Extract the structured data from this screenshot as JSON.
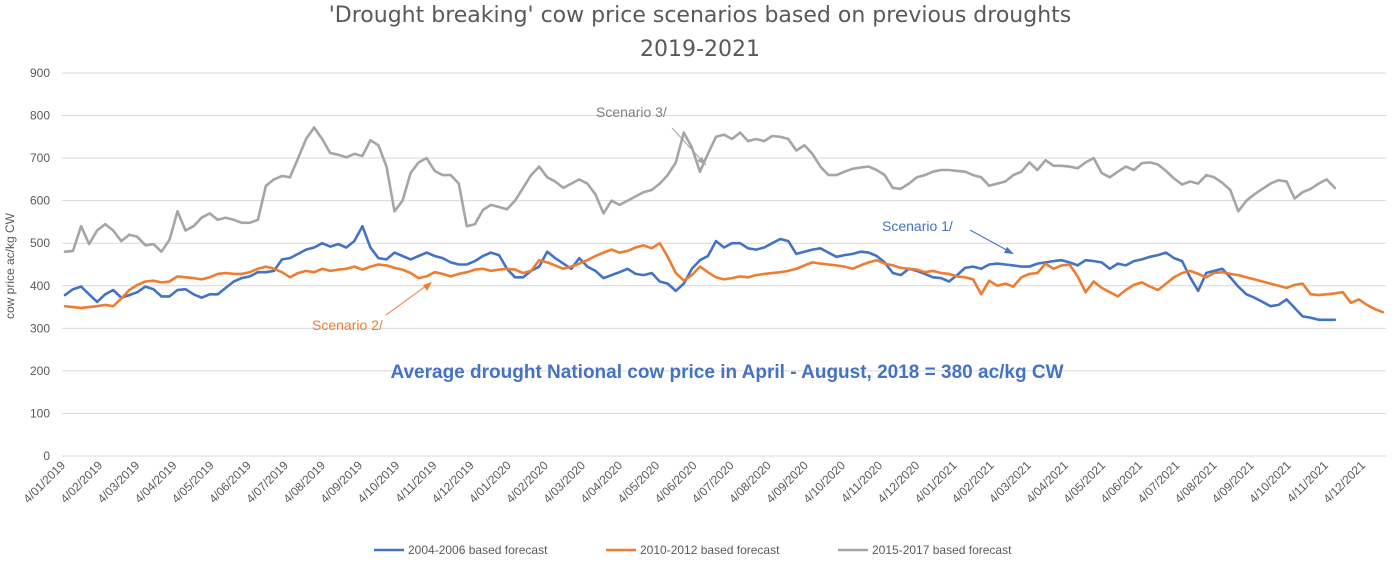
{
  "chart_data": {
    "type": "line",
    "title": "'Drought breaking' cow price scenarios based on previous droughts",
    "subtitle": "2019-2021",
    "ylabel": "cow price ac/kg CW",
    "xlabel": "",
    "ylim": [
      0,
      900
    ],
    "yticks": [
      0,
      100,
      200,
      300,
      400,
      500,
      600,
      700,
      800,
      900
    ],
    "grid": true,
    "legend_position": "bottom",
    "x_tick_labels": [
      "4/01/2019",
      "4/02/2019",
      "4/03/2019",
      "4/04/2019",
      "4/05/2019",
      "4/06/2019",
      "4/07/2019",
      "4/08/2019",
      "4/09/2019",
      "4/10/2019",
      "4/11/2019",
      "4/12/2019",
      "4/01/2020",
      "4/02/2020",
      "4/03/2020",
      "4/04/2020",
      "4/05/2020",
      "4/06/2020",
      "4/07/2020",
      "4/08/2020",
      "4/09/2020",
      "4/10/2020",
      "4/11/2020",
      "4/12/2020",
      "4/01/2021",
      "4/02/2021",
      "4/03/2021",
      "4/04/2021",
      "4/05/2021",
      "4/06/2021",
      "4/07/2021",
      "4/08/2021",
      "4/09/2021",
      "4/10/2021",
      "4/11/2021",
      "4/12/2021"
    ],
    "series": [
      {
        "name": "2004-2006 based forecast",
        "color": "#4472c4",
        "values": [
          378,
          392,
          398,
          380,
          362,
          380,
          390,
          372,
          378,
          385,
          398,
          392,
          375,
          375,
          390,
          392,
          380,
          372,
          380,
          380,
          395,
          410,
          418,
          422,
          432,
          432,
          435,
          462,
          465,
          475,
          485,
          490,
          500,
          492,
          498,
          490,
          505,
          540,
          490,
          465,
          462,
          478,
          470,
          462,
          470,
          478,
          470,
          465,
          455,
          450,
          450,
          458,
          470,
          478,
          472,
          440,
          420,
          420,
          435,
          445,
          480,
          465,
          452,
          440,
          465,
          445,
          435,
          418,
          425,
          432,
          440,
          428,
          425,
          430,
          410,
          405,
          388,
          405,
          440,
          460,
          470,
          505,
          490,
          500,
          500,
          488,
          485,
          490,
          500,
          510,
          505,
          475,
          480,
          485,
          488,
          478,
          468,
          472,
          475,
          480,
          478,
          470,
          455,
          430,
          425,
          440,
          435,
          428,
          420,
          418,
          410,
          425,
          442,
          445,
          440,
          450,
          452,
          450,
          448,
          445,
          445,
          452,
          455,
          458,
          460,
          455,
          448,
          460,
          458,
          455,
          440,
          452,
          448,
          458,
          462,
          468,
          472,
          478,
          465,
          458,
          420,
          388,
          430,
          435,
          440,
          420,
          398,
          380,
          372,
          362,
          352,
          355,
          368,
          348,
          328,
          325,
          320,
          320,
          320
        ]
      },
      {
        "name": "2010-2012 based forecast",
        "color": "#ed7d31",
        "values": [
          352,
          350,
          348,
          350,
          352,
          355,
          352,
          370,
          390,
          402,
          410,
          412,
          408,
          410,
          422,
          420,
          418,
          415,
          420,
          428,
          430,
          428,
          428,
          432,
          440,
          445,
          440,
          432,
          420,
          430,
          435,
          432,
          440,
          435,
          438,
          440,
          445,
          438,
          445,
          450,
          448,
          442,
          438,
          430,
          418,
          422,
          432,
          428,
          422,
          428,
          432,
          438,
          440,
          435,
          438,
          440,
          438,
          430,
          435,
          460,
          455,
          448,
          440,
          445,
          452,
          460,
          470,
          478,
          485,
          478,
          482,
          490,
          495,
          488,
          500,
          468,
          430,
          412,
          425,
          445,
          432,
          420,
          415,
          418,
          422,
          420,
          425,
          428,
          430,
          432,
          435,
          440,
          448,
          455,
          452,
          450,
          448,
          445,
          440,
          448,
          455,
          460,
          452,
          448,
          442,
          440,
          438,
          432,
          435,
          430,
          428,
          422,
          420,
          415,
          380,
          412,
          400,
          405,
          398,
          420,
          428,
          430,
          452,
          440,
          448,
          450,
          422,
          385,
          410,
          395,
          385,
          375,
          390,
          402,
          408,
          398,
          390,
          405,
          420,
          430,
          435,
          428,
          420,
          430,
          432,
          428,
          425,
          420,
          415,
          410,
          405,
          400,
          395,
          402,
          405,
          380,
          378,
          380,
          382,
          385,
          360,
          368,
          355,
          345,
          338
        ]
      },
      {
        "name": "2015-2017 based forecast",
        "color": "#a5a5a5",
        "values": [
          480,
          482,
          540,
          498,
          530,
          545,
          530,
          505,
          520,
          515,
          495,
          498,
          480,
          508,
          575,
          530,
          540,
          560,
          570,
          555,
          560,
          555,
          548,
          548,
          555,
          635,
          650,
          658,
          655,
          700,
          745,
          772,
          745,
          712,
          708,
          702,
          710,
          705,
          742,
          730,
          680,
          575,
          600,
          665,
          690,
          700,
          670,
          660,
          660,
          640,
          540,
          545,
          578,
          590,
          585,
          580,
          600,
          630,
          660,
          680,
          655,
          645,
          630,
          640,
          650,
          640,
          615,
          570,
          600,
          590,
          600,
          610,
          620,
          625,
          640,
          660,
          690,
          760,
          725,
          668,
          710,
          750,
          755,
          745,
          760,
          740,
          745,
          740,
          752,
          750,
          745,
          718,
          730,
          710,
          680,
          660,
          660,
          668,
          675,
          678,
          680,
          672,
          660,
          630,
          628,
          640,
          655,
          660,
          668,
          672,
          672,
          670,
          668,
          660,
          655,
          635,
          640,
          645,
          660,
          668,
          690,
          672,
          695,
          682,
          682,
          680,
          676,
          690,
          700,
          665,
          655,
          668,
          680,
          672,
          688,
          690,
          685,
          670,
          652,
          638,
          645,
          640,
          660,
          655,
          642,
          625,
          575,
          600,
          615,
          628,
          640,
          648,
          645,
          605,
          620,
          628,
          640,
          650,
          630
        ]
      }
    ],
    "annotations": {
      "scenario3": "Scenario 3/",
      "scenario1": "Scenario 1/",
      "scenario2": "Scenario 2/",
      "average": "Average drought  National cow price in April - August, 2018 = 380 ac/kg CW"
    }
  }
}
